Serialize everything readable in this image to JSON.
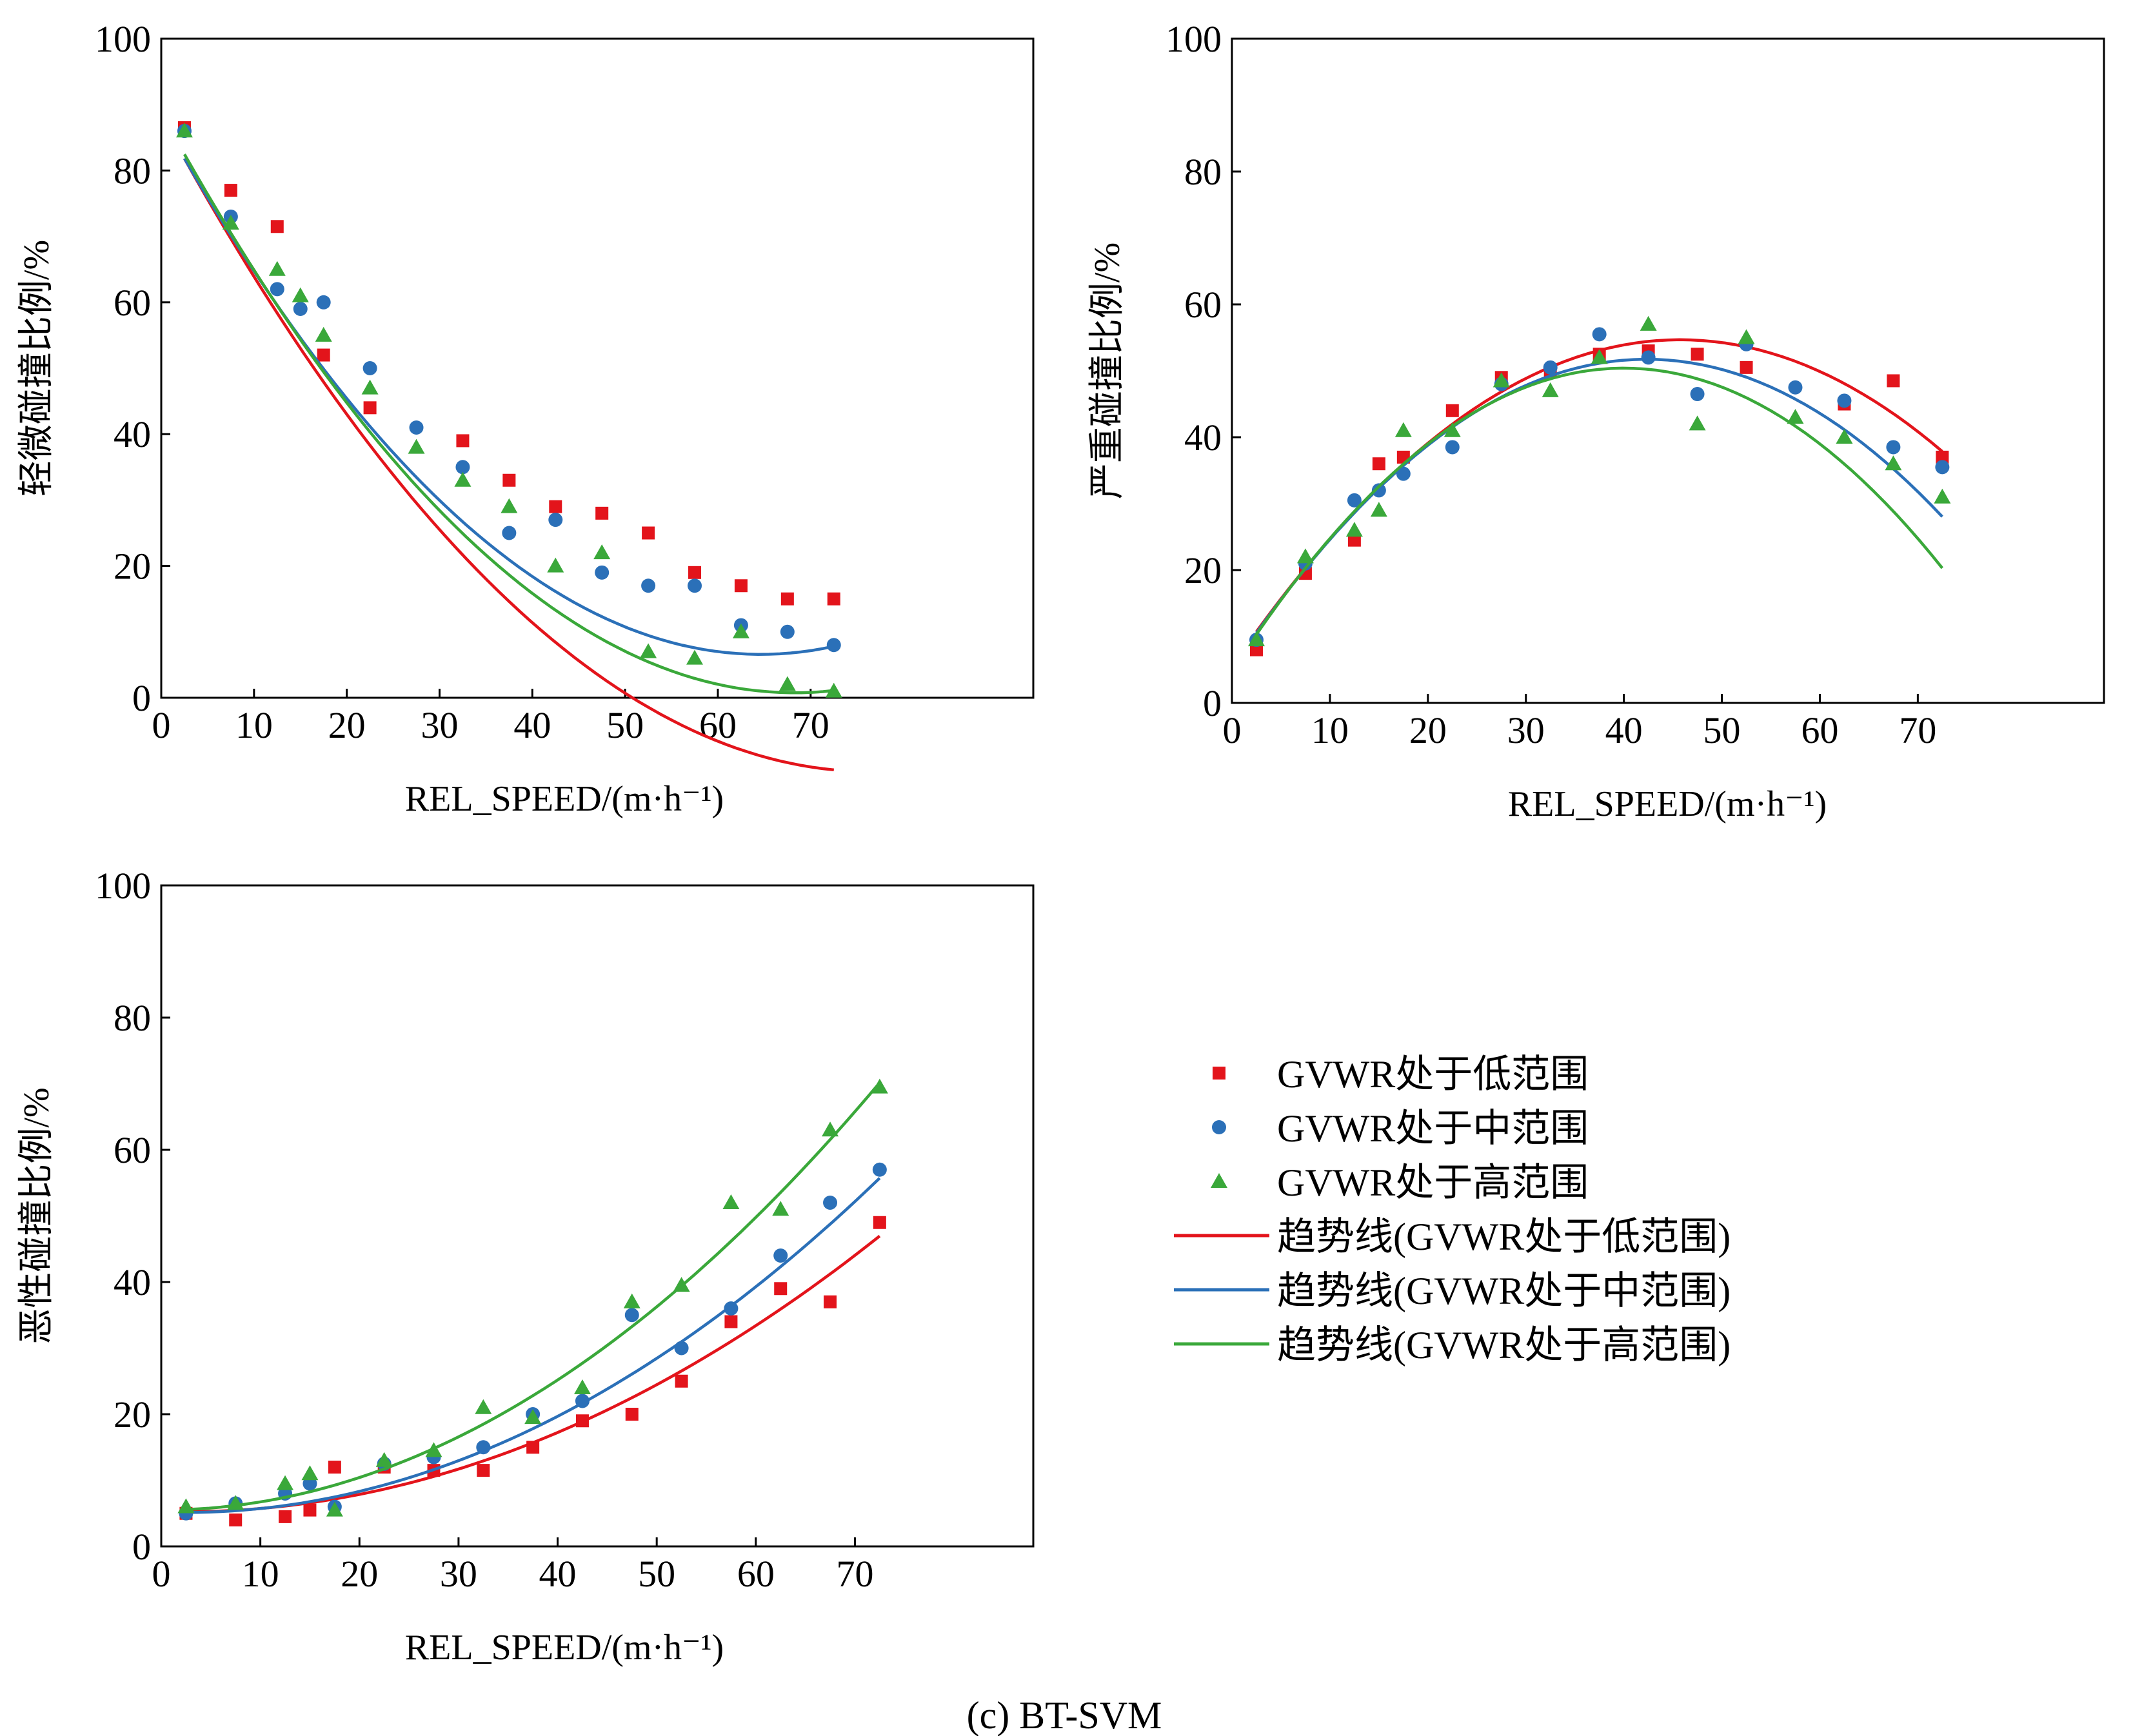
{
  "caption": "(c) BT-SVM",
  "colors": {
    "low": "#e3141b",
    "mid": "#2b70b8",
    "high": "#3aa83a"
  },
  "legend": {
    "items": [
      {
        "key": "low",
        "kind": "marker",
        "marker": "square",
        "label": "GVWR处于低范围"
      },
      {
        "key": "mid",
        "kind": "marker",
        "marker": "circle",
        "label": "GVWR处于中范围"
      },
      {
        "key": "high",
        "kind": "marker",
        "marker": "triangle",
        "label": "GVWR处于高范围"
      },
      {
        "key": "low",
        "kind": "line",
        "label": "趋势线(GVWR处于低范围)"
      },
      {
        "key": "mid",
        "kind": "line",
        "label": "趋势线(GVWR处于中范围)"
      },
      {
        "key": "high",
        "kind": "line",
        "label": "趋势线(GVWR处于高范围)"
      }
    ]
  },
  "chart_data": [
    {
      "type": "scatter",
      "id": "slight",
      "xlabel": "REL_SPEED/(m·h⁻¹)",
      "ylabel": "轻微碰撞比例/%",
      "xlim": [
        0,
        94
      ],
      "ylim": [
        0,
        100
      ],
      "xticks": [
        0,
        10,
        20,
        30,
        40,
        50,
        60,
        70
      ],
      "yticks": [
        0,
        20,
        40,
        60,
        80,
        100
      ],
      "series": [
        {
          "key": "low",
          "name": "GVWR处于低范围",
          "marker": "square",
          "points": [
            [
              2.5,
              86.5
            ],
            [
              7.5,
              77
            ],
            [
              12.5,
              71.5
            ],
            [
              17.5,
              52
            ],
            [
              22.5,
              44
            ],
            [
              32.5,
              39
            ],
            [
              37.5,
              33
            ],
            [
              42.5,
              29
            ],
            [
              47.5,
              28
            ],
            [
              52.5,
              25
            ],
            [
              57.5,
              19
            ],
            [
              62.5,
              17
            ],
            [
              67.5,
              15
            ],
            [
              72.5,
              15
            ]
          ],
          "trend": {
            "coef": [
              88.2,
              -2.6,
              0.017
            ],
            "x": [
              2.5,
              72.5
            ]
          }
        },
        {
          "key": "mid",
          "name": "GVWR处于中范围",
          "marker": "circle",
          "points": [
            [
              2.5,
              86
            ],
            [
              7.5,
              73
            ],
            [
              12.5,
              62
            ],
            [
              15,
              59
            ],
            [
              17.5,
              60
            ],
            [
              22.5,
              50
            ],
            [
              27.5,
              41
            ],
            [
              32.5,
              35
            ],
            [
              37.5,
              25
            ],
            [
              42.5,
              27
            ],
            [
              47.5,
              19
            ],
            [
              52.5,
              17
            ],
            [
              57.5,
              17
            ],
            [
              62.5,
              11
            ],
            [
              67.5,
              10
            ],
            [
              72.5,
              8
            ]
          ],
          "trend": {
            "coef": [
              88,
              -2.52,
              0.0195
            ],
            "x": [
              2.5,
              72.5
            ]
          }
        },
        {
          "key": "high",
          "name": "GVWR处于高范围",
          "marker": "triangle",
          "points": [
            [
              2.5,
              86
            ],
            [
              7.5,
              72
            ],
            [
              12.5,
              65
            ],
            [
              15,
              61
            ],
            [
              17.5,
              55
            ],
            [
              22.5,
              47
            ],
            [
              27.5,
              38
            ],
            [
              32.5,
              33
            ],
            [
              37.5,
              29
            ],
            [
              42.5,
              20
            ],
            [
              47.5,
              22
            ],
            [
              52.5,
              7
            ],
            [
              57.5,
              6
            ],
            [
              62.5,
              10
            ],
            [
              67.5,
              2
            ],
            [
              72.5,
              1
            ]
          ],
          "trend": {
            "coef": [
              88.8,
              -2.58,
              0.0189
            ],
            "x": [
              2.5,
              72.5
            ]
          }
        }
      ]
    },
    {
      "type": "scatter",
      "id": "serious",
      "xlabel": "REL_SPEED/(m·h⁻¹)",
      "ylabel": "严重碰撞比例/%",
      "xlim": [
        0,
        89
      ],
      "ylim": [
        0,
        100
      ],
      "xticks": [
        0,
        10,
        20,
        30,
        40,
        50,
        60,
        70
      ],
      "yticks": [
        0,
        20,
        40,
        60,
        80,
        100
      ],
      "series": [
        {
          "key": "low",
          "name": "GVWR处于低范围",
          "marker": "square",
          "points": [
            [
              2.5,
              8
            ],
            [
              7.5,
              19.5
            ],
            [
              12.5,
              24.5
            ],
            [
              15,
              36
            ],
            [
              17.5,
              37
            ],
            [
              22.5,
              44
            ],
            [
              27.5,
              49
            ],
            [
              32.5,
              50
            ],
            [
              37.5,
              52.5
            ],
            [
              42.5,
              53
            ],
            [
              47.5,
              52.5
            ],
            [
              52.5,
              50.5
            ],
            [
              62.5,
              45
            ],
            [
              67.5,
              48.5
            ],
            [
              72.5,
              37
            ]
          ],
          "trend": {
            "coef": [
              5.5,
              2.15,
              -0.0235
            ],
            "x": [
              2.5,
              72.5
            ]
          }
        },
        {
          "key": "mid",
          "name": "GVWR处于中范围",
          "marker": "circle",
          "points": [
            [
              2.5,
              9.5
            ],
            [
              7.5,
              21
            ],
            [
              12.5,
              30.5
            ],
            [
              15,
              32
            ],
            [
              17.5,
              34.5
            ],
            [
              22.5,
              38.5
            ],
            [
              27.5,
              48
            ],
            [
              32.5,
              50.5
            ],
            [
              37.5,
              55.5
            ],
            [
              42.5,
              52
            ],
            [
              47.5,
              46.5
            ],
            [
              52.5,
              54
            ],
            [
              57.5,
              47.5
            ],
            [
              62.5,
              45.5
            ],
            [
              67.5,
              38.5
            ],
            [
              72.5,
              35.5
            ]
          ],
          "trend": {
            "coef": [
              5.2,
              2.2,
              -0.026
            ],
            "x": [
              2.5,
              72.5
            ]
          }
        },
        {
          "key": "high",
          "name": "GVWR处于高范围",
          "marker": "triangle",
          "points": [
            [
              2.5,
              9.5
            ],
            [
              7.5,
              22
            ],
            [
              12.5,
              26
            ],
            [
              15,
              29
            ],
            [
              17.5,
              41
            ],
            [
              22.5,
              41
            ],
            [
              27.5,
              48.5
            ],
            [
              32.5,
              47
            ],
            [
              37.5,
              52
            ],
            [
              42.5,
              57
            ],
            [
              47.5,
              42
            ],
            [
              52.5,
              55
            ],
            [
              57.5,
              43
            ],
            [
              62.5,
              40
            ],
            [
              67.5,
              36
            ],
            [
              72.5,
              31
            ]
          ],
          "trend": {
            "coef": [
              4.8,
              2.28,
              -0.0285
            ],
            "x": [
              2.5,
              72.5
            ]
          }
        }
      ]
    },
    {
      "type": "scatter",
      "id": "fatal",
      "xlabel": "REL_SPEED/(m·h⁻¹)",
      "ylabel": "恶性碰撞比例/%",
      "xlim": [
        0,
        88
      ],
      "ylim": [
        0,
        100
      ],
      "xticks": [
        0,
        10,
        20,
        30,
        40,
        50,
        60,
        70
      ],
      "yticks": [
        0,
        20,
        40,
        60,
        80,
        100
      ],
      "series": [
        {
          "key": "low",
          "name": "GVWR处于低范围",
          "marker": "square",
          "points": [
            [
              2.5,
              5
            ],
            [
              7.5,
              4
            ],
            [
              12.5,
              4.5
            ],
            [
              15,
              5.5
            ],
            [
              17.5,
              12
            ],
            [
              22.5,
              12
            ],
            [
              27.5,
              11.5
            ],
            [
              32.5,
              11.5
            ],
            [
              37.5,
              15
            ],
            [
              42.5,
              19
            ],
            [
              47.5,
              20
            ],
            [
              52.5,
              25
            ],
            [
              57.5,
              34
            ],
            [
              62.5,
              39
            ],
            [
              67.5,
              37
            ],
            [
              72.5,
              49
            ]
          ],
          "trend": {
            "coef": [
              5.3,
              -0.0417,
              0.0085
            ],
            "x": [
              2.5,
              72.5
            ]
          }
        },
        {
          "key": "mid",
          "name": "GVWR处于中范围",
          "marker": "circle",
          "points": [
            [
              2.5,
              5
            ],
            [
              7.5,
              6.5
            ],
            [
              12.5,
              8
            ],
            [
              15,
              9.5
            ],
            [
              17.5,
              6
            ],
            [
              22.5,
              12.5
            ],
            [
              27.5,
              13.5
            ],
            [
              32.5,
              15
            ],
            [
              37.5,
              20
            ],
            [
              42.5,
              22
            ],
            [
              47.5,
              35
            ],
            [
              52.5,
              30
            ],
            [
              57.5,
              36
            ],
            [
              62.5,
              44
            ],
            [
              67.5,
              52
            ],
            [
              72.5,
              57
            ]
          ],
          "trend": {
            "coef": [
              5.2,
              -0.05,
              0.0103
            ],
            "x": [
              2.5,
              72.5
            ]
          }
        },
        {
          "key": "high",
          "name": "GVWR处于高范围",
          "marker": "triangle",
          "points": [
            [
              2.5,
              6
            ],
            [
              7.5,
              6.5
            ],
            [
              12.5,
              9.5
            ],
            [
              15,
              11
            ],
            [
              17.5,
              5.5
            ],
            [
              22.5,
              13
            ],
            [
              27.5,
              14.5
            ],
            [
              32.5,
              21
            ],
            [
              37.5,
              19.5
            ],
            [
              42.5,
              24
            ],
            [
              47.5,
              37
            ],
            [
              52.5,
              39.5
            ],
            [
              57.5,
              52
            ],
            [
              62.5,
              51
            ],
            [
              67.5,
              63
            ],
            [
              72.5,
              69.5
            ]
          ],
          "trend": {
            "coef": [
              5.5,
              0.0,
              0.0123
            ],
            "x": [
              2.5,
              72.5
            ]
          }
        }
      ]
    }
  ]
}
